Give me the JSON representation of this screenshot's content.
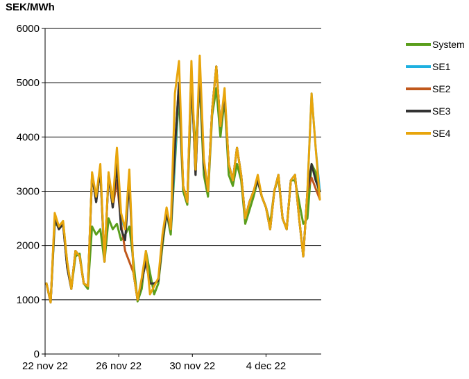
{
  "chart_data": {
    "type": "line",
    "ylabel": "SEK/MWh",
    "ylim": [
      0,
      6000
    ],
    "yticks": [
      0,
      1000,
      2000,
      3000,
      4000,
      5000,
      6000
    ],
    "xlim": [
      "2022-11-22",
      "2022-12-07"
    ],
    "xticks": [
      "22 nov 22",
      "26 nov 22",
      "30 nov 22",
      "4 dec 22"
    ],
    "xtick_dates": [
      "2022-11-22",
      "2022-11-26",
      "2022-11-30",
      "2022-12-04"
    ],
    "grid": "horizontal",
    "legend_position": "right",
    "series": [
      {
        "name": "System",
        "color": "#5a9e1c",
        "values": [
          1300,
          970,
          2400,
          2350,
          2450,
          1700,
          1200,
          1800,
          1850,
          1300,
          1200,
          2350,
          2200,
          2300,
          1700,
          2500,
          2300,
          2400,
          2100,
          2200,
          2350,
          1700,
          970,
          1200,
          1900,
          1500,
          1100,
          1300,
          2000,
          2600,
          2200,
          3500,
          4800,
          3000,
          2750,
          4900,
          3800,
          5000,
          3300,
          2900,
          4400,
          4900,
          4000,
          4700,
          3300,
          3100,
          3500,
          3200,
          2400,
          2650,
          2900,
          3200,
          2900,
          2700,
          2400,
          3000,
          3250,
          2500,
          2300,
          3200,
          3200,
          2800,
          2400,
          2500,
          3500,
          3350,
          2850
        ]
      },
      {
        "name": "SE1",
        "color": "#1eb0e0",
        "values": [
          1300,
          950,
          2500,
          2300,
          2400,
          1600,
          1200,
          1900,
          1800,
          1300,
          1250,
          3300,
          2800,
          3400,
          1700,
          3300,
          2700,
          3700,
          2500,
          2300,
          3300,
          1500,
          1000,
          1350,
          1700,
          1300,
          1300,
          1350,
          2100,
          2600,
          2300,
          3600,
          5000,
          3100,
          2800,
          5200,
          3300,
          5300,
          3500,
          3000,
          4500,
          5300,
          4200,
          4800,
          3500,
          3200,
          3800,
          3300,
          2500,
          2800,
          3000,
          3200,
          2900,
          2700,
          2300,
          3000,
          3300,
          2500,
          2300,
          3200,
          3300,
          2500,
          1800,
          3000,
          4800,
          3800,
          3000
        ]
      },
      {
        "name": "SE2",
        "color": "#c0581c",
        "values": [
          1300,
          950,
          2500,
          2300,
          2400,
          1600,
          1200,
          1900,
          1800,
          1300,
          1250,
          3300,
          2800,
          3400,
          1700,
          3300,
          2700,
          3200,
          2400,
          1900,
          1700,
          1500,
          1000,
          1350,
          1700,
          1300,
          1300,
          1350,
          2100,
          2600,
          2300,
          3800,
          5000,
          3100,
          2800,
          5200,
          3300,
          5300,
          3500,
          3000,
          4500,
          5300,
          4200,
          4800,
          3500,
          3200,
          3800,
          3300,
          2500,
          2800,
          3000,
          3200,
          2900,
          2700,
          2300,
          3000,
          3300,
          2500,
          2300,
          3200,
          3300,
          2500,
          1800,
          3000,
          3250,
          3050,
          2850
        ]
      },
      {
        "name": "SE3",
        "color": "#333333",
        "values": [
          1300,
          950,
          2500,
          2300,
          2400,
          1600,
          1200,
          1900,
          1800,
          1300,
          1250,
          3300,
          2800,
          3400,
          1700,
          3300,
          2700,
          3500,
          2300,
          2100,
          3200,
          1500,
          1000,
          1350,
          1700,
          1300,
          1300,
          1350,
          2100,
          2600,
          2300,
          3800,
          5000,
          3100,
          2800,
          5200,
          3300,
          5300,
          3500,
          3000,
          4500,
          5300,
          4200,
          4800,
          3500,
          3200,
          3800,
          3300,
          2500,
          2800,
          3000,
          3200,
          2900,
          2700,
          2300,
          3000,
          3300,
          2500,
          2300,
          3200,
          3300,
          2500,
          1800,
          3000,
          3500,
          3200,
          3000
        ]
      },
      {
        "name": "SE4",
        "color": "#e8a50c",
        "values": [
          1300,
          950,
          2600,
          2350,
          2450,
          1700,
          1200,
          1900,
          1800,
          1300,
          1250,
          3350,
          2900,
          3500,
          1700,
          3350,
          2800,
          3800,
          2600,
          2300,
          3400,
          1500,
          1000,
          1400,
          1900,
          1100,
          1250,
          1400,
          2200,
          2700,
          2300,
          4800,
          5400,
          3100,
          2800,
          5400,
          3400,
          5500,
          3600,
          3000,
          4500,
          5300,
          4200,
          4900,
          3500,
          3200,
          3800,
          3300,
          2500,
          2800,
          3000,
          3300,
          2900,
          2700,
          2300,
          3000,
          3300,
          2500,
          2300,
          3200,
          3300,
          2500,
          1800,
          3000,
          4800,
          3800,
          2850
        ]
      }
    ]
  }
}
